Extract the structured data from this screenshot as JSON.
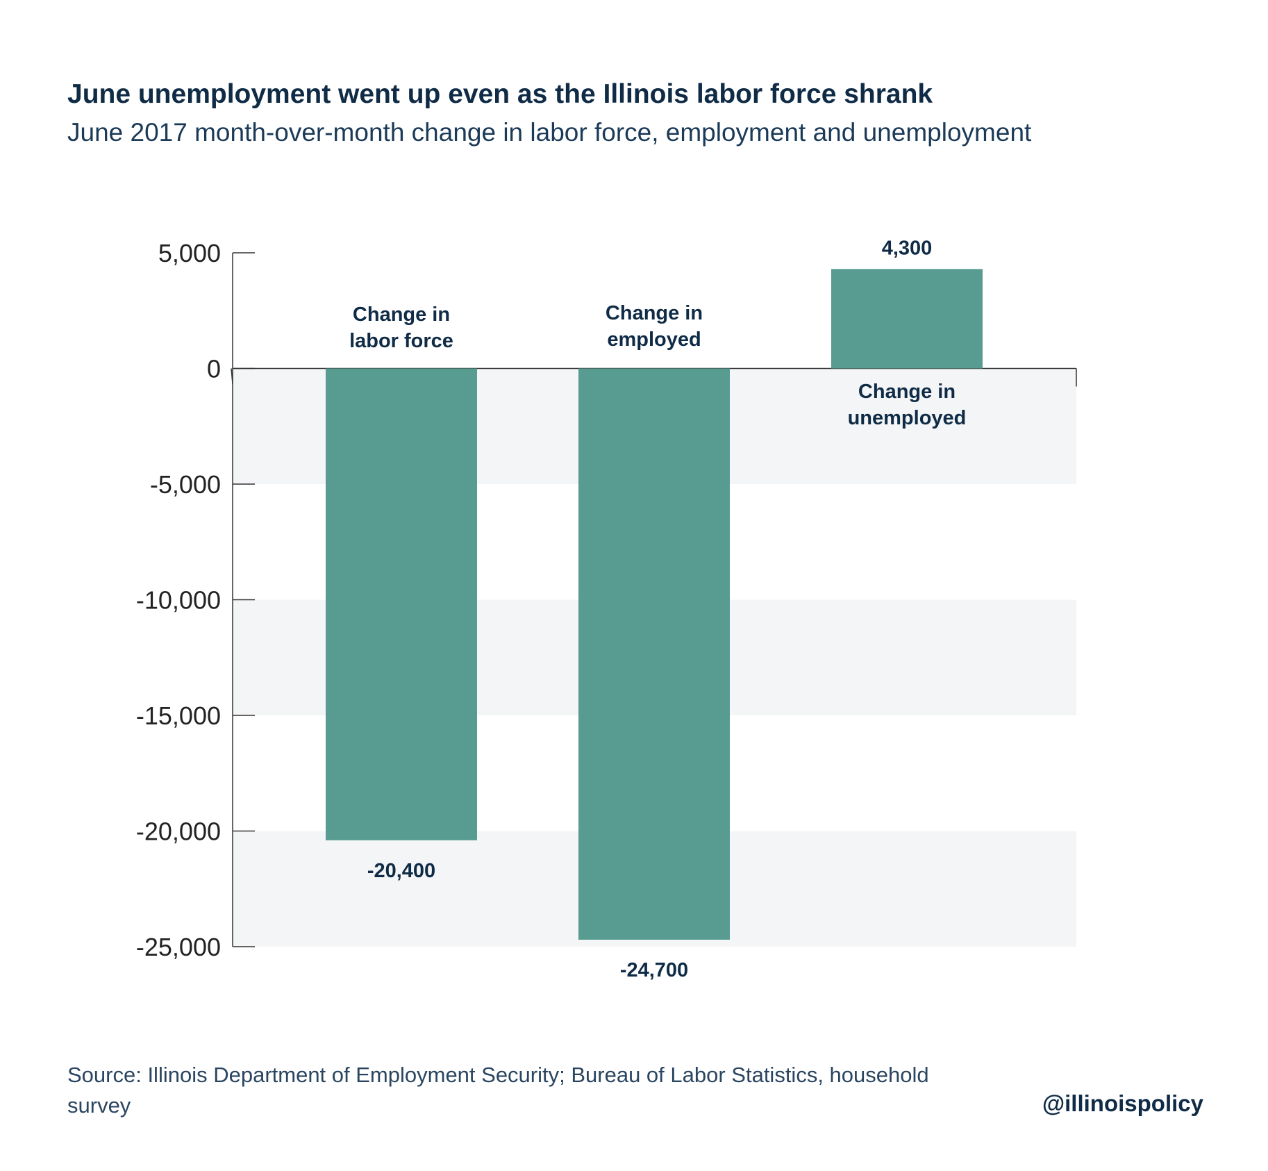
{
  "title": "June unemployment went up even as the Illinois labor force shrank",
  "subtitle": "June 2017 month-over-month change in labor force, employment and unemployment",
  "source": "Source:  Illinois Department of Employment Security; Bureau of Labor Statistics, household survey",
  "handle": "@illinoispolicy",
  "colors": {
    "bar": "#589c91",
    "band": "#f4f5f7",
    "text": "#0f2b46",
    "axis": "#333333"
  },
  "chart_data": {
    "type": "bar",
    "categories": [
      "Change in labor force",
      "Change in employed",
      "Change in unemployed"
    ],
    "category_label_lines": [
      [
        "Change in",
        "labor force"
      ],
      [
        "Change in",
        "employed"
      ],
      [
        "Change in",
        "unemployed"
      ]
    ],
    "values": [
      -20400,
      -24700,
      4300
    ],
    "value_labels": [
      "-20,400",
      "-24,700",
      "4,300"
    ],
    "ylim": [
      -25000,
      5000
    ],
    "yticks": [
      5000,
      0,
      -5000,
      -10000,
      -15000,
      -20000,
      -25000
    ],
    "ytick_labels": [
      "5,000",
      "0",
      "-5,000",
      "-10,000",
      "-15,000",
      "-20,000",
      "-25,000"
    ],
    "xlabel": "",
    "ylabel": "",
    "grid": false,
    "legend": false
  }
}
